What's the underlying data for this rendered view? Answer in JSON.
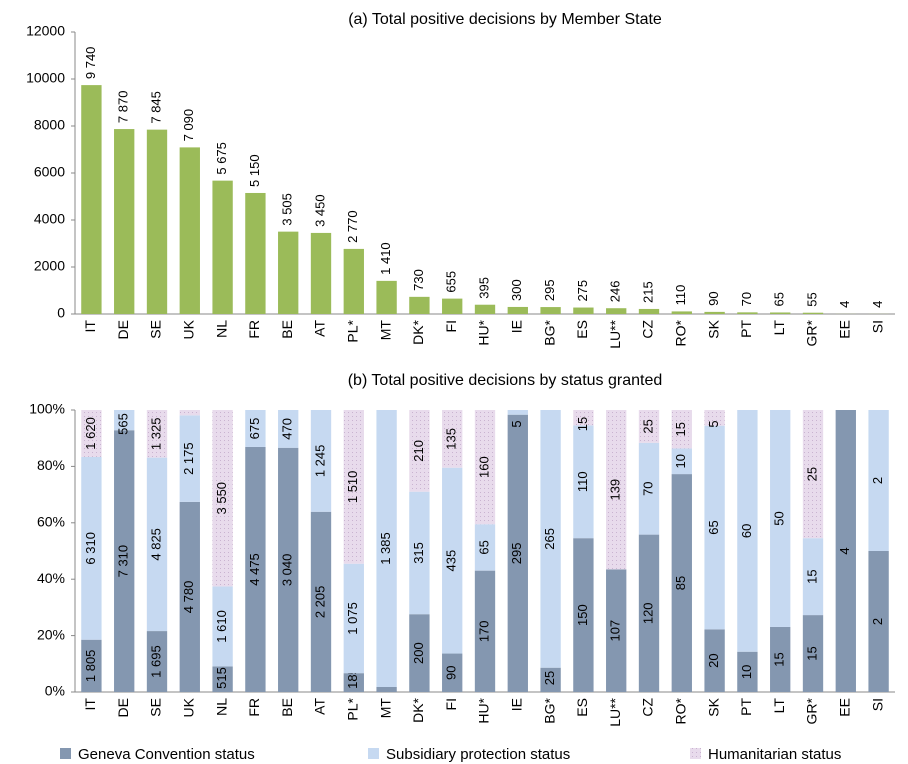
{
  "chart_data": [
    {
      "type": "bar",
      "title": "(a) Total positive decisions by Member State",
      "categories": [
        "IT",
        "DE",
        "SE",
        "UK",
        "NL",
        "FR",
        "BE",
        "AT",
        "PL*",
        "MT",
        "DK*",
        "FI",
        "HU*",
        "IE",
        "BG*",
        "ES",
        "LU**",
        "CZ",
        "RO*",
        "SK",
        "PT",
        "LT",
        "GR*",
        "EE",
        "SI"
      ],
      "values": [
        9740,
        7870,
        7845,
        7090,
        5675,
        5150,
        3505,
        3450,
        2770,
        1410,
        730,
        655,
        395,
        300,
        295,
        275,
        246,
        215,
        110,
        90,
        70,
        65,
        55,
        4,
        4
      ],
      "value_labels": [
        "9 740",
        "7 870",
        "7 845",
        "7 090",
        "5 675",
        "5 150",
        "3 505",
        "3 450",
        "2 770",
        "1 410",
        "730",
        "655",
        "395",
        "300",
        "295",
        "275",
        "246",
        "215",
        "110",
        "90",
        "70",
        "65",
        "55",
        "4",
        "4"
      ],
      "color": "#9bbb59",
      "ylim": [
        0,
        12000
      ],
      "yticks": [
        0,
        2000,
        4000,
        6000,
        8000,
        10000,
        12000
      ],
      "grid": false
    },
    {
      "type": "stacked_percent_bar",
      "title": "(b) Total positive decisions by status granted",
      "categories": [
        "IT",
        "DE",
        "SE",
        "UK",
        "NL",
        "FR",
        "BE",
        "AT",
        "PL*",
        "MT",
        "DK*",
        "FI",
        "HU*",
        "IE",
        "BG*",
        "ES",
        "LU**",
        "CZ",
        "RO*",
        "SK",
        "PT",
        "LT",
        "GR*",
        "EE",
        "SI"
      ],
      "series": [
        {
          "name": "Geneva Convention status",
          "color": "#8497b0",
          "values": [
            1805,
            7310,
            1695,
            4780,
            515,
            4475,
            3040,
            2205,
            185,
            25,
            200,
            90,
            170,
            295,
            25,
            150,
            107,
            120,
            85,
            20,
            10,
            15,
            15,
            4,
            2
          ],
          "value_labels": [
            "1 805",
            "7 310",
            "1 695",
            "4 780",
            "515",
            "4 475",
            "3 040",
            "2 205",
            "185",
            null,
            "200",
            "90",
            "170",
            "295",
            "25",
            "150",
            "107",
            "120",
            "85",
            "20",
            "10",
            "15",
            "15",
            "4",
            "2"
          ]
        },
        {
          "name": "Subsidiary protection status",
          "color": "#c6d9f1",
          "values": [
            6310,
            565,
            4825,
            2175,
            1610,
            675,
            470,
            1245,
            1075,
            1385,
            315,
            435,
            65,
            5,
            265,
            110,
            null,
            70,
            10,
            65,
            60,
            50,
            15,
            null,
            2
          ],
          "value_labels": [
            "6 310",
            "565",
            "4 825",
            "2 175",
            "1 610",
            "675",
            "470",
            "1 245",
            "1 075",
            "1 385",
            "315",
            "435",
            "65",
            "5",
            "265",
            "110",
            null,
            "70",
            "10",
            "65",
            "60",
            "50",
            "15",
            null,
            "2"
          ]
        },
        {
          "name": "Humanitarian status",
          "color": "#e8dbec",
          "values": [
            1620,
            null,
            1325,
            135,
            3550,
            null,
            null,
            null,
            1510,
            null,
            210,
            135,
            160,
            null,
            null,
            15,
            139,
            25,
            15,
            5,
            null,
            null,
            25,
            null,
            null
          ],
          "value_labels": [
            "1 620",
            null,
            "1 325",
            null,
            "3 550",
            null,
            null,
            null,
            "1 510",
            null,
            "210",
            "135",
            "160",
            null,
            null,
            "15",
            "139",
            "25",
            "15",
            "5",
            null,
            null,
            "25",
            null,
            null
          ]
        }
      ],
      "ylim": [
        0,
        100
      ],
      "yticks": [
        {
          "value": 0,
          "label": "0%"
        },
        {
          "value": 20,
          "label": "20%"
        },
        {
          "value": 40,
          "label": "40%"
        },
        {
          "value": 60,
          "label": "60%"
        },
        {
          "value": 80,
          "label": "80%"
        },
        {
          "value": 100,
          "label": "100%"
        }
      ],
      "grid": false
    }
  ]
}
